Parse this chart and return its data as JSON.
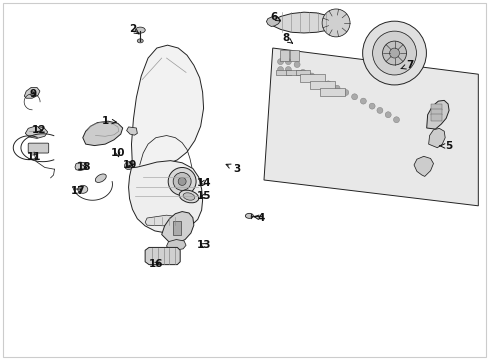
{
  "bg_color": "#ffffff",
  "fig_width": 4.89,
  "fig_height": 3.6,
  "dpi": 100,
  "arrow_color": "#111111",
  "text_color": "#111111",
  "label_fontsize": 7.5,
  "ec": "#222222",
  "fc_light": "#f5f5f5",
  "fc_mid": "#e0e0e0",
  "fc_dark": "#cccccc",
  "lw": 0.7,
  "label_positions": {
    "1": [
      0.215,
      0.665,
      0.245,
      0.66
    ],
    "2": [
      0.27,
      0.92,
      0.285,
      0.906
    ],
    "3": [
      0.485,
      0.53,
      0.455,
      0.548
    ],
    "4": [
      0.535,
      0.395,
      0.518,
      0.398
    ],
    "5": [
      0.92,
      0.595,
      0.9,
      0.595
    ],
    "6": [
      0.56,
      0.955,
      0.575,
      0.942
    ],
    "7": [
      0.84,
      0.82,
      0.82,
      0.81
    ],
    "8": [
      0.585,
      0.895,
      0.6,
      0.88
    ],
    "9": [
      0.065,
      0.74,
      0.076,
      0.728
    ],
    "10": [
      0.24,
      0.575,
      0.242,
      0.562
    ],
    "11": [
      0.068,
      0.565,
      0.082,
      0.577
    ],
    "12": [
      0.078,
      0.64,
      0.092,
      0.635
    ],
    "13": [
      0.416,
      0.318,
      0.402,
      0.326
    ],
    "14": [
      0.418,
      0.493,
      0.401,
      0.49
    ],
    "15": [
      0.418,
      0.455,
      0.402,
      0.453
    ],
    "16": [
      0.318,
      0.265,
      0.328,
      0.272
    ],
    "17": [
      0.158,
      0.47,
      0.172,
      0.48
    ],
    "18": [
      0.17,
      0.535,
      0.184,
      0.533
    ],
    "19": [
      0.265,
      0.543,
      0.272,
      0.539
    ]
  }
}
